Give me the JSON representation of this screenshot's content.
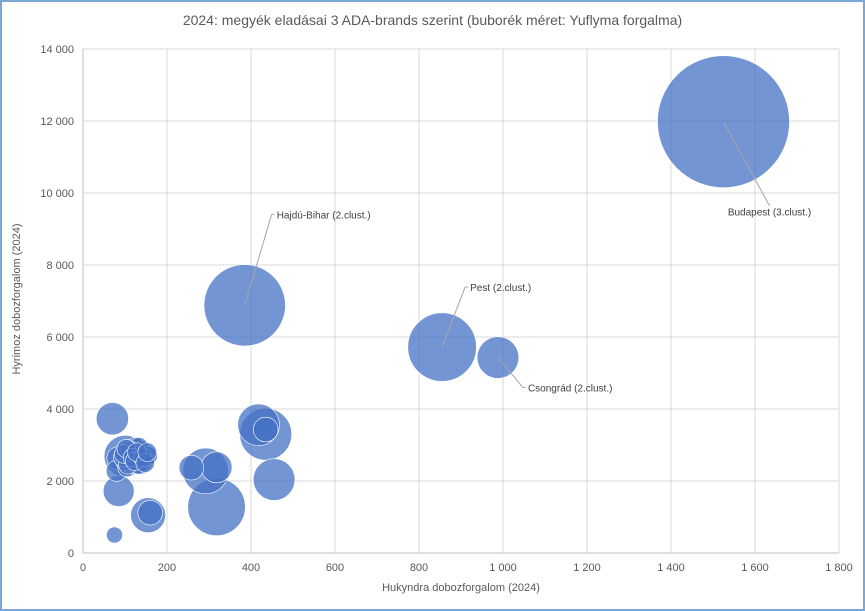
{
  "chart_data": {
    "type": "bubble",
    "title": "2024: megyék eladásai 3 ADA-brands szerint (buborék méret: Yuflyma forgalma)",
    "xlabel": "Hukyndra dobozforgalom (2024)",
    "ylabel": "Hyrimoz dobozforgalom (2024)",
    "xlim": [
      0,
      1800
    ],
    "ylim": [
      0,
      14000
    ],
    "x_ticks": [
      "0",
      "200",
      "400",
      "600",
      "800",
      "1 000",
      "1 200",
      "1 400",
      "1 600",
      "1 800"
    ],
    "y_ticks": [
      "0",
      "2 000",
      "4 000",
      "6 000",
      "8 000",
      "10 000",
      "12 000",
      "14 000"
    ],
    "grid": true,
    "bubble_color": "#4472c4",
    "points": [
      {
        "x": 1525,
        "y": 11980,
        "size": 100,
        "label": "Budapest (3.clust.)"
      },
      {
        "x": 385,
        "y": 6880,
        "size": 38,
        "label": "Hajdú-Bihar (2.clust.)"
      },
      {
        "x": 855,
        "y": 5720,
        "size": 27,
        "label": "Pest (2.clust.)"
      },
      {
        "x": 988,
        "y": 5430,
        "size": 10,
        "label": "Csongrád (2.clust.)"
      },
      {
        "x": 318,
        "y": 1280,
        "size": 19,
        "label": ""
      },
      {
        "x": 435,
        "y": 3300,
        "size": 15.5,
        "label": ""
      },
      {
        "x": 418,
        "y": 3560,
        "size": 10,
        "label": ""
      },
      {
        "x": 435,
        "y": 3430,
        "size": 3.5,
        "label": ""
      },
      {
        "x": 292,
        "y": 2280,
        "size": 12,
        "label": ""
      },
      {
        "x": 455,
        "y": 2040,
        "size": 10,
        "label": ""
      },
      {
        "x": 318,
        "y": 2380,
        "size": 5.5,
        "label": ""
      },
      {
        "x": 258,
        "y": 2370,
        "size": 3.5,
        "label": ""
      },
      {
        "x": 100,
        "y": 2690,
        "size": 10,
        "label": ""
      },
      {
        "x": 70,
        "y": 3730,
        "size": 6,
        "label": ""
      },
      {
        "x": 85,
        "y": 2630,
        "size": 3.2,
        "label": ""
      },
      {
        "x": 80,
        "y": 2280,
        "size": 2.5,
        "label": ""
      },
      {
        "x": 105,
        "y": 2380,
        "size": 2,
        "label": ""
      },
      {
        "x": 105,
        "y": 2600,
        "size": 2,
        "label": ""
      },
      {
        "x": 105,
        "y": 2800,
        "size": 2,
        "label": ""
      },
      {
        "x": 110,
        "y": 2500,
        "size": 2,
        "label": ""
      },
      {
        "x": 110,
        "y": 2900,
        "size": 2,
        "label": ""
      },
      {
        "x": 115,
        "y": 2700,
        "size": 2,
        "label": ""
      },
      {
        "x": 118,
        "y": 2450,
        "size": 2,
        "label": ""
      },
      {
        "x": 120,
        "y": 2850,
        "size": 2,
        "label": ""
      },
      {
        "x": 125,
        "y": 2600,
        "size": 2,
        "label": ""
      },
      {
        "x": 130,
        "y": 2750,
        "size": 2,
        "label": ""
      },
      {
        "x": 130,
        "y": 2900,
        "size": 2,
        "label": ""
      },
      {
        "x": 135,
        "y": 2550,
        "size": 2,
        "label": ""
      },
      {
        "x": 140,
        "y": 2700,
        "size": 2,
        "label": ""
      },
      {
        "x": 140,
        "y": 2450,
        "size": 2,
        "label": ""
      },
      {
        "x": 135,
        "y": 2850,
        "size": 2,
        "label": ""
      },
      {
        "x": 125,
        "y": 2950,
        "size": 2,
        "label": ""
      },
      {
        "x": 110,
        "y": 2650,
        "size": 2,
        "label": ""
      },
      {
        "x": 115,
        "y": 2550,
        "size": 2,
        "label": ""
      },
      {
        "x": 120,
        "y": 2750,
        "size": 2,
        "label": ""
      },
      {
        "x": 128,
        "y": 2450,
        "size": 2,
        "label": ""
      },
      {
        "x": 138,
        "y": 2600,
        "size": 2,
        "label": ""
      },
      {
        "x": 105,
        "y": 2700,
        "size": 2,
        "label": ""
      },
      {
        "x": 145,
        "y": 2550,
        "size": 2,
        "label": ""
      },
      {
        "x": 148,
        "y": 2750,
        "size": 2,
        "label": ""
      },
      {
        "x": 100,
        "y": 2550,
        "size": 2,
        "label": ""
      },
      {
        "x": 95,
        "y": 2650,
        "size": 2,
        "label": ""
      },
      {
        "x": 140,
        "y": 2850,
        "size": 2,
        "label": ""
      },
      {
        "x": 150,
        "y": 2650,
        "size": 2,
        "label": ""
      },
      {
        "x": 133,
        "y": 2450,
        "size": 2,
        "label": ""
      },
      {
        "x": 133,
        "y": 2950,
        "size": 2,
        "label": ""
      },
      {
        "x": 155,
        "y": 2700,
        "size": 2,
        "label": ""
      },
      {
        "x": 107,
        "y": 2450,
        "size": 2,
        "label": ""
      },
      {
        "x": 112,
        "y": 2850,
        "size": 2,
        "label": ""
      },
      {
        "x": 97,
        "y": 2750,
        "size": 2,
        "label": ""
      },
      {
        "x": 103,
        "y": 2900,
        "size": 2,
        "label": ""
      },
      {
        "x": 118,
        "y": 2650,
        "size": 2,
        "label": ""
      },
      {
        "x": 123,
        "y": 2550,
        "size": 2,
        "label": ""
      },
      {
        "x": 143,
        "y": 2650,
        "size": 2,
        "label": ""
      },
      {
        "x": 128,
        "y": 2800,
        "size": 2,
        "label": ""
      },
      {
        "x": 148,
        "y": 2500,
        "size": 2,
        "label": ""
      },
      {
        "x": 153,
        "y": 2800,
        "size": 2,
        "label": ""
      },
      {
        "x": 85,
        "y": 1720,
        "size": 5.5,
        "label": ""
      },
      {
        "x": 155,
        "y": 1050,
        "size": 7,
        "label": ""
      },
      {
        "x": 160,
        "y": 1120,
        "size": 3.5,
        "label": ""
      },
      {
        "x": 75,
        "y": 500,
        "size": 1.5,
        "label": ""
      }
    ]
  }
}
